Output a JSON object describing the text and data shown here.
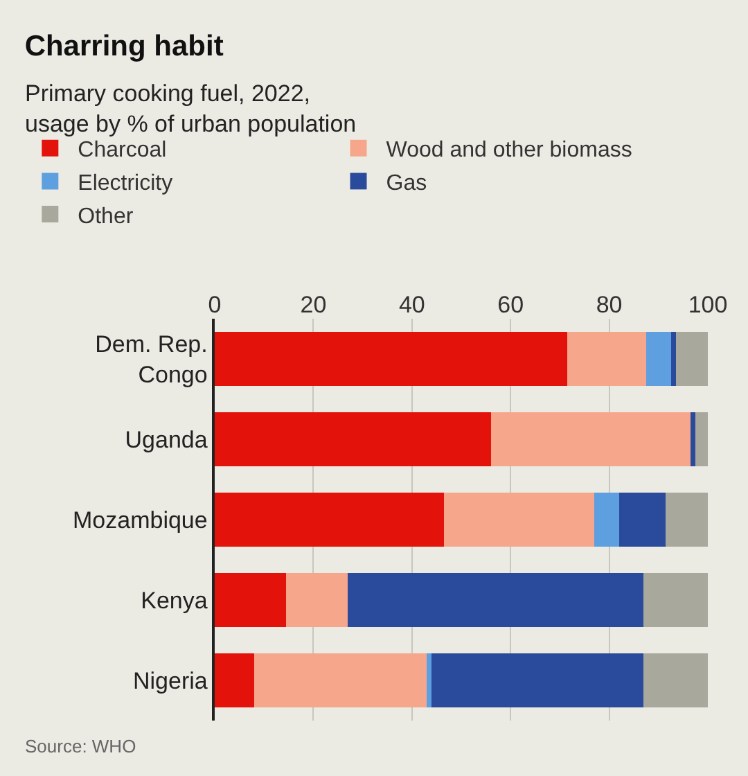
{
  "chart_data": {
    "type": "bar",
    "orientation": "horizontal",
    "stacked": true,
    "title": "Charring habit",
    "subtitle": "Primary cooking fuel, 2022,\nusage by % of urban population",
    "categories": [
      "Dem. Rep.\nCongo",
      "Uganda",
      "Mozambique",
      "Kenya",
      "Nigeria"
    ],
    "series": [
      {
        "name": "Charcoal",
        "color": "#e3120b",
        "values": [
          71.5,
          56,
          46.5,
          14.5,
          8
        ]
      },
      {
        "name": "Wood and other biomass",
        "color": "#f6a68a",
        "values": [
          16,
          40.5,
          30.5,
          12.5,
          35
        ]
      },
      {
        "name": "Electricity",
        "color": "#5e9fe0",
        "values": [
          5,
          0,
          5,
          0,
          1
        ]
      },
      {
        "name": "Gas",
        "color": "#2a4b9b",
        "values": [
          1,
          1,
          9.5,
          60,
          43
        ]
      },
      {
        "name": "Other",
        "color": "#a9a89c",
        "values": [
          6.5,
          2.5,
          8.5,
          13,
          13
        ]
      }
    ],
    "xlim": [
      0,
      100
    ],
    "xticks": [
      0,
      20,
      40,
      60,
      80,
      100
    ],
    "grid": "x",
    "legend": "top left",
    "annotations": [
      "Source: WHO"
    ]
  }
}
